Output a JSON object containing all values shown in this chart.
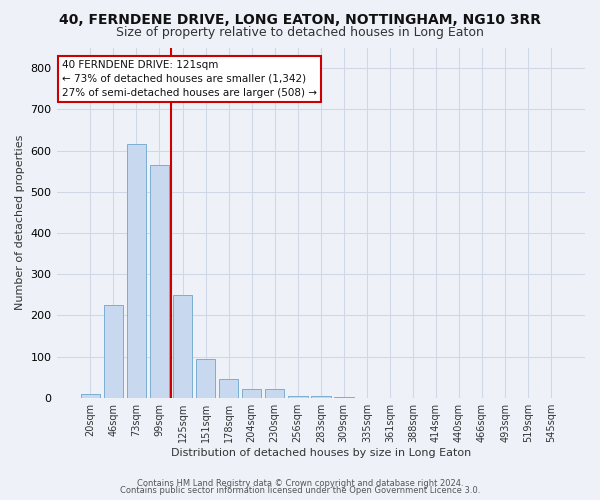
{
  "title": "40, FERNDENE DRIVE, LONG EATON, NOTTINGHAM, NG10 3RR",
  "subtitle": "Size of property relative to detached houses in Long Eaton",
  "xlabel": "Distribution of detached houses by size in Long Eaton",
  "ylabel": "Number of detached properties",
  "footer_line1": "Contains HM Land Registry data © Crown copyright and database right 2024.",
  "footer_line2": "Contains public sector information licensed under the Open Government Licence 3.0.",
  "bar_color": "#c8d8ee",
  "bar_edge_color": "#7aaed0",
  "vline_color": "#cc0000",
  "vline_x_idx": 4,
  "annotation_line1": "40 FERNDENE DRIVE: 121sqm",
  "annotation_line2": "← 73% of detached houses are smaller (1,342)",
  "annotation_line3": "27% of semi-detached houses are larger (508) →",
  "annotation_box_color": "#cc0000",
  "categories": [
    "20sqm",
    "46sqm",
    "73sqm",
    "99sqm",
    "125sqm",
    "151sqm",
    "178sqm",
    "204sqm",
    "230sqm",
    "256sqm",
    "283sqm",
    "309sqm",
    "335sqm",
    "361sqm",
    "388sqm",
    "414sqm",
    "440sqm",
    "466sqm",
    "493sqm",
    "519sqm",
    "545sqm"
  ],
  "values": [
    10,
    225,
    615,
    565,
    250,
    95,
    45,
    20,
    20,
    5,
    4,
    2,
    0,
    0,
    0,
    0,
    0,
    0,
    0,
    0,
    0
  ],
  "ylim": [
    0,
    850
  ],
  "yticks": [
    0,
    100,
    200,
    300,
    400,
    500,
    600,
    700,
    800
  ],
  "background_color": "#eef2f8",
  "grid_color": "#d0d8e8",
  "title_fontsize": 10,
  "subtitle_fontsize": 9
}
